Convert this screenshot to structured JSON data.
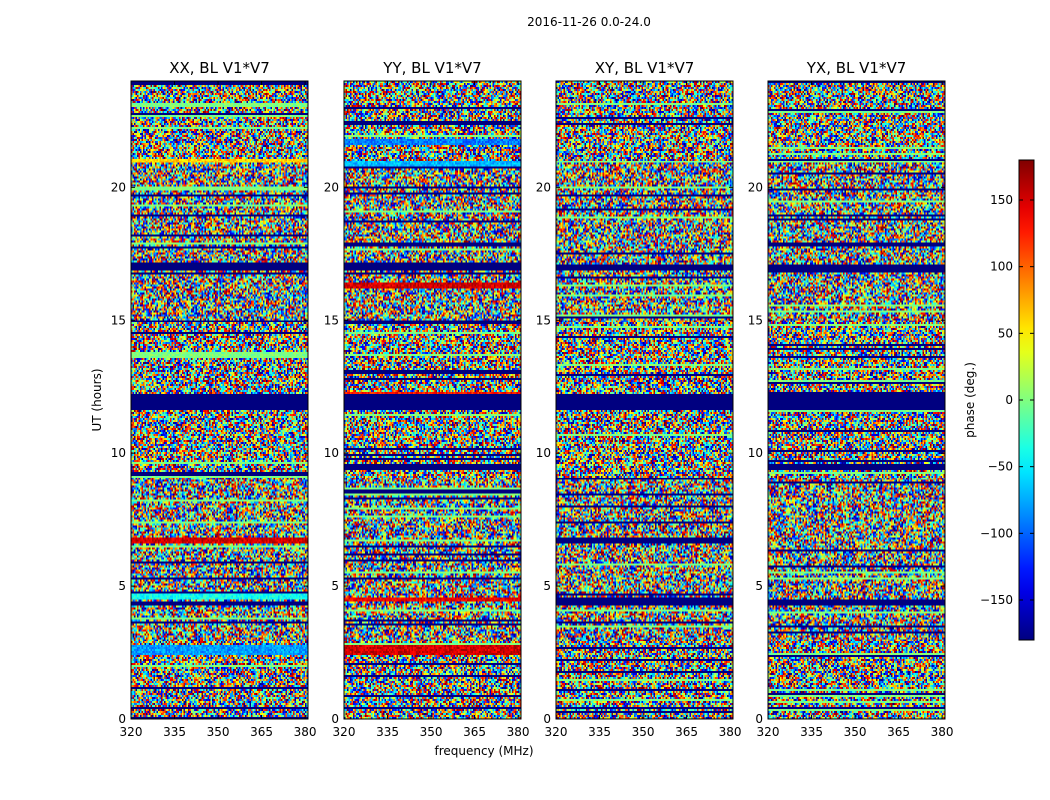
{
  "figure": {
    "suptitle": "2016-11-26 0.0-24.0",
    "xlabel": "frequency (MHz)",
    "ylabel": "UT (hours)"
  },
  "colorbar": {
    "label": "phase (deg.)",
    "range": [
      -180,
      180
    ],
    "ticks": [
      150,
      100,
      50,
      0,
      -50,
      -100,
      -150
    ],
    "tick_labels": [
      "150",
      "100",
      "50",
      "0",
      "−50",
      "−100",
      "−150"
    ],
    "colormap": "jet"
  },
  "chart_data": {
    "type": "heatmap",
    "description_values": "phase (deg.) vs frequency and UT for each polarization",
    "xlim": [
      320,
      381
    ],
    "ylim": [
      0,
      24
    ],
    "xticks": [
      320,
      335,
      350,
      365,
      380
    ],
    "yticks": [
      0,
      5,
      10,
      15,
      20
    ],
    "value_range": [
      -180,
      180
    ],
    "panels": [
      {
        "title": "XX, BL V1*V7",
        "dark_bands_hours": [
          [
            11.6,
            12.2
          ],
          [
            16.9,
            17.1
          ],
          [
            9.15,
            9.3
          ],
          [
            4.3,
            4.45
          ],
          [
            0.35,
            0.45
          ]
        ],
        "colored_bands": [
          {
            "range": [
              20.9,
              21.1
            ],
            "phase": 60
          },
          {
            "range": [
              6.6,
              6.8
            ],
            "phase": 150
          },
          {
            "range": [
              2.4,
              2.8
            ],
            "phase": -80
          },
          {
            "range": [
              4.5,
              4.7
            ],
            "phase": -40
          }
        ]
      },
      {
        "title": "YY, BL V1*V7",
        "dark_bands_hours": [
          [
            11.6,
            12.2
          ],
          [
            16.9,
            17.2
          ],
          [
            9.4,
            9.6
          ],
          [
            3.5,
            3.6
          ],
          [
            0.35,
            0.45
          ]
        ],
        "colored_bands": [
          {
            "range": [
              12.1,
              12.3
            ],
            "phase": 130
          },
          {
            "range": [
              21.6,
              21.8
            ],
            "phase": -90
          },
          {
            "range": [
              20.8,
              21.0
            ],
            "phase": -70
          },
          {
            "range": [
              2.4,
              2.8
            ],
            "phase": 150
          },
          {
            "range": [
              4.4,
              4.6
            ],
            "phase": 140
          },
          {
            "range": [
              16.2,
              16.4
            ],
            "phase": 150
          }
        ]
      },
      {
        "title": "XY, BL V1*V7",
        "dark_bands_hours": [
          [
            11.6,
            12.2
          ],
          [
            16.9,
            17.1
          ],
          [
            6.6,
            6.8
          ],
          [
            4.3,
            4.45
          ],
          [
            0.35,
            0.45
          ]
        ],
        "colored_bands": []
      },
      {
        "title": "YX, BL V1*V7",
        "dark_bands_hours": [
          [
            11.6,
            12.2
          ],
          [
            16.8,
            17.1
          ],
          [
            9.4,
            9.6
          ],
          [
            4.3,
            4.5
          ],
          [
            0.35,
            0.45
          ]
        ],
        "colored_bands": []
      }
    ]
  }
}
